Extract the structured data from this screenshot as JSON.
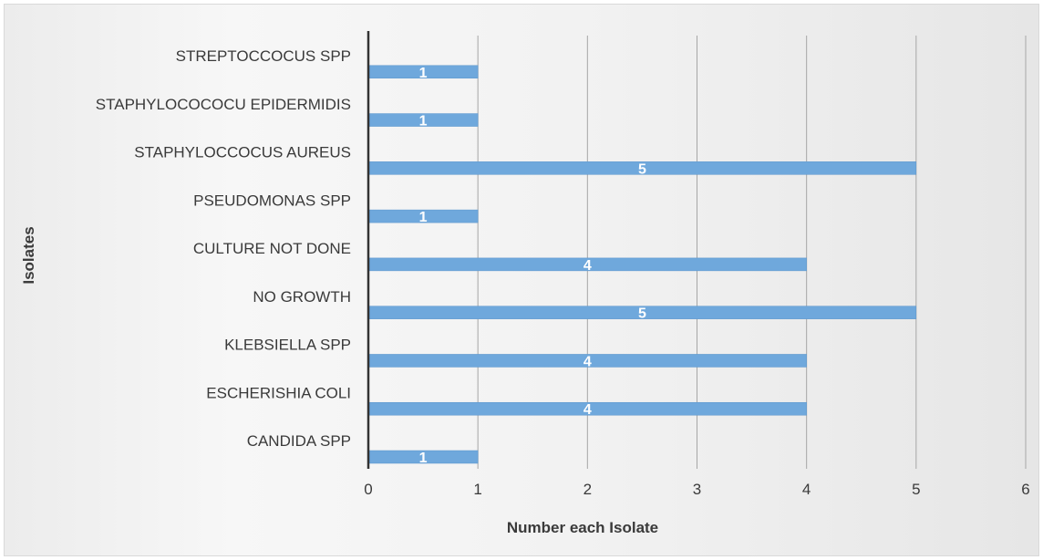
{
  "chart_data": {
    "type": "bar",
    "orientation": "horizontal",
    "categories": [
      "STREPTOCCOCUS SPP",
      "STAPHYLOCOCOCU  EPIDERMIDIS",
      "STAPHYLOCCOCUS  AUREUS",
      "PSEUDOMONAS SPP",
      "CULTURE NOT DONE",
      "NO GROWTH",
      "KLEBSIELLA SPP",
      "ESCHERISHIA COLI",
      "CANDIDA SPP"
    ],
    "values": [
      1,
      1,
      5,
      1,
      4,
      5,
      4,
      4,
      1
    ],
    "data_labels": [
      "1",
      "1",
      "5",
      "1",
      "4",
      "5",
      "4",
      "4",
      "1"
    ],
    "xlabel": "Number each Isolate",
    "ylabel": "Isolates",
    "xlim": [
      0,
      6
    ],
    "x_ticks": [
      "0",
      "1",
      "2",
      "3",
      "4",
      "5",
      "6"
    ],
    "grid": "vertical",
    "legend": "none",
    "bar_color": "#6fa8dc"
  }
}
